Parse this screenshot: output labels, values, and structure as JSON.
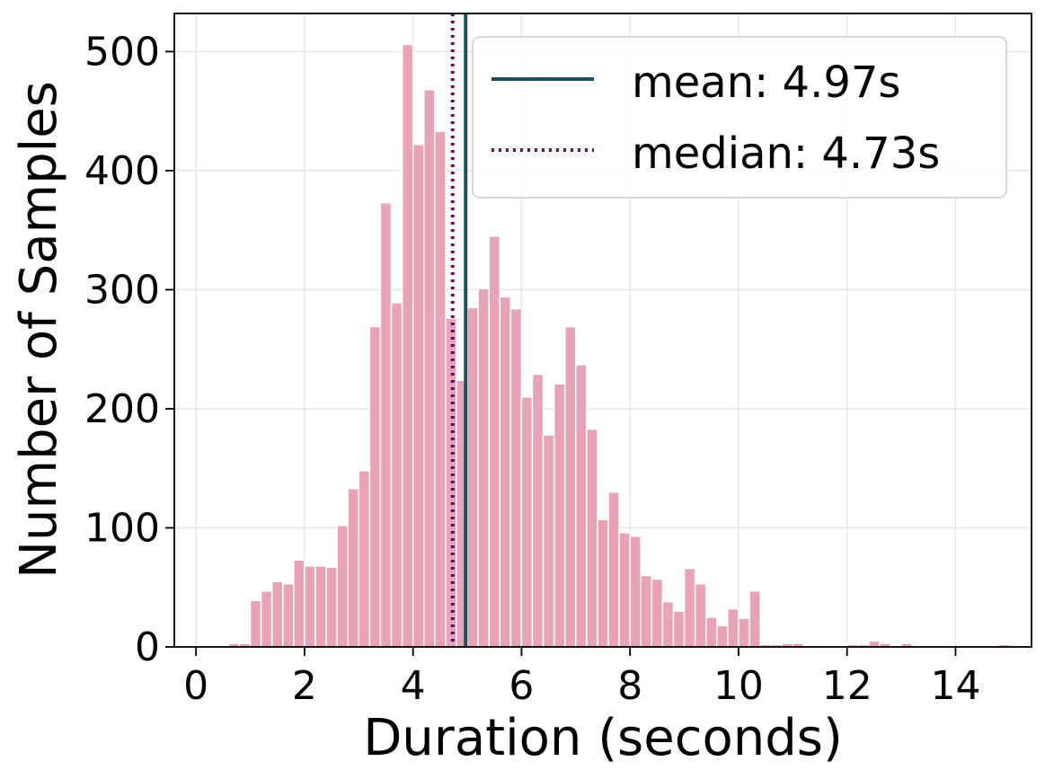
{
  "chart_data": {
    "type": "bar",
    "title": "",
    "xlabel": "Duration (seconds)",
    "ylabel": "Number of Samples",
    "xlim": [
      -0.4,
      15.4
    ],
    "ylim": [
      0,
      532
    ],
    "xticks": [
      0,
      2,
      4,
      6,
      8,
      10,
      12,
      14
    ],
    "yticks": [
      0,
      100,
      200,
      300,
      400,
      500
    ],
    "grid": true,
    "legend_position": "top-right",
    "bin_width": 0.2,
    "bins": [
      {
        "x": 0.6,
        "count": 3
      },
      {
        "x": 0.8,
        "count": 3
      },
      {
        "x": 1.0,
        "count": 39
      },
      {
        "x": 1.2,
        "count": 47
      },
      {
        "x": 1.4,
        "count": 55
      },
      {
        "x": 1.6,
        "count": 53
      },
      {
        "x": 1.8,
        "count": 73
      },
      {
        "x": 2.0,
        "count": 68
      },
      {
        "x": 2.2,
        "count": 68
      },
      {
        "x": 2.4,
        "count": 67
      },
      {
        "x": 2.6,
        "count": 102
      },
      {
        "x": 2.8,
        "count": 133
      },
      {
        "x": 3.0,
        "count": 148
      },
      {
        "x": 3.2,
        "count": 269
      },
      {
        "x": 3.4,
        "count": 373
      },
      {
        "x": 3.6,
        "count": 289
      },
      {
        "x": 3.8,
        "count": 506
      },
      {
        "x": 4.0,
        "count": 422
      },
      {
        "x": 4.2,
        "count": 468
      },
      {
        "x": 4.4,
        "count": 433
      },
      {
        "x": 4.6,
        "count": 276
      },
      {
        "x": 4.8,
        "count": 224
      },
      {
        "x": 5.0,
        "count": 285
      },
      {
        "x": 5.2,
        "count": 301
      },
      {
        "x": 5.4,
        "count": 345
      },
      {
        "x": 5.6,
        "count": 294
      },
      {
        "x": 5.8,
        "count": 284
      },
      {
        "x": 6.0,
        "count": 210
      },
      {
        "x": 6.2,
        "count": 229
      },
      {
        "x": 6.4,
        "count": 178
      },
      {
        "x": 6.6,
        "count": 221
      },
      {
        "x": 6.8,
        "count": 269
      },
      {
        "x": 7.0,
        "count": 237
      },
      {
        "x": 7.2,
        "count": 183
      },
      {
        "x": 7.4,
        "count": 107
      },
      {
        "x": 7.6,
        "count": 130
      },
      {
        "x": 7.8,
        "count": 96
      },
      {
        "x": 8.0,
        "count": 93
      },
      {
        "x": 8.2,
        "count": 60
      },
      {
        "x": 8.4,
        "count": 57
      },
      {
        "x": 8.6,
        "count": 38
      },
      {
        "x": 8.8,
        "count": 30
      },
      {
        "x": 9.0,
        "count": 66
      },
      {
        "x": 9.2,
        "count": 53
      },
      {
        "x": 9.4,
        "count": 25
      },
      {
        "x": 9.6,
        "count": 18
      },
      {
        "x": 9.8,
        "count": 32
      },
      {
        "x": 10.0,
        "count": 24
      },
      {
        "x": 10.2,
        "count": 47
      },
      {
        "x": 10.4,
        "count": 2
      },
      {
        "x": 10.6,
        "count": 2
      },
      {
        "x": 10.8,
        "count": 3
      },
      {
        "x": 11.0,
        "count": 3
      },
      {
        "x": 11.6,
        "count": 1
      },
      {
        "x": 11.8,
        "count": 1
      },
      {
        "x": 12.0,
        "count": 2
      },
      {
        "x": 12.2,
        "count": 2
      },
      {
        "x": 12.4,
        "count": 5
      },
      {
        "x": 12.6,
        "count": 3
      },
      {
        "x": 13.0,
        "count": 3
      },
      {
        "x": 14.8,
        "count": 2
      }
    ],
    "bar_color": "#e8a4b6",
    "reference_lines": [
      {
        "label": "mean: 4.97s",
        "value": 4.97,
        "color": "#1f4e5f",
        "style": "solid"
      },
      {
        "label": "median: 4.73s",
        "value": 4.73,
        "color": "#6b0a5e",
        "style": "dotted"
      }
    ]
  }
}
